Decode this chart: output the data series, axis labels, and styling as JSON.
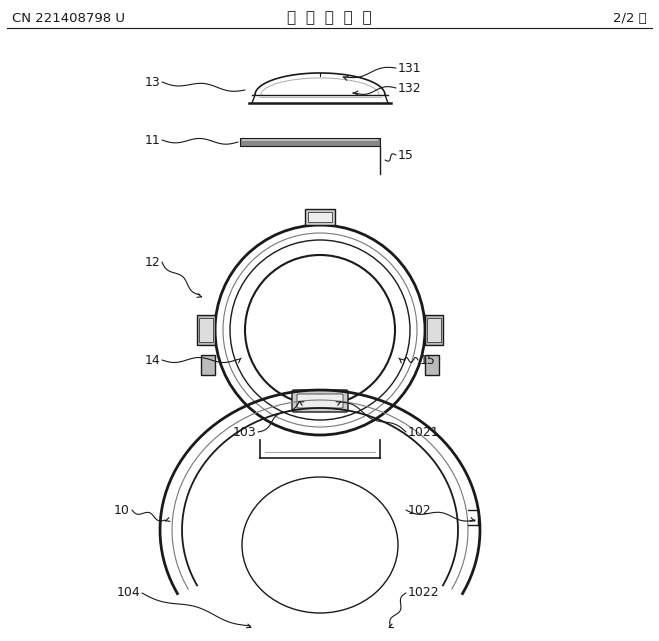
{
  "title": "说  明  书  附  图",
  "left_header": "CN 221408798 U",
  "right_header": "2/2 页",
  "bg_color": "#ffffff",
  "line_color": "#1a1a1a",
  "gray_color": "#777777",
  "light_gray": "#aaaaaa",
  "dark_gray": "#555555",
  "header_font_size": 9.5,
  "title_font_size": 11,
  "label_font_size": 9
}
